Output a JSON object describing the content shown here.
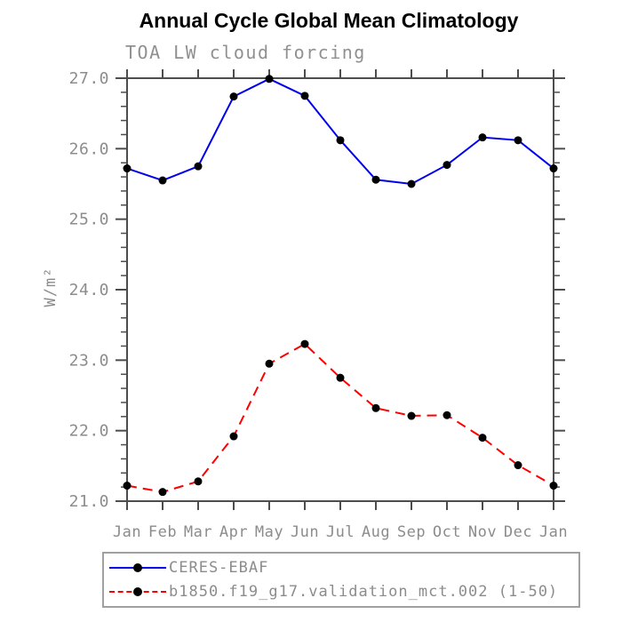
{
  "header": {
    "title": "Annual Cycle Global Mean Climatology",
    "subtitle": "TOA LW cloud forcing"
  },
  "colors": {
    "axis": "#4d4d4d",
    "tick_label": "#8c8c8c",
    "subtitle_text": "#909090",
    "title_text": "#000000",
    "marker": "#000000",
    "series_obs": "#0000ee",
    "series_model": "#ff0000",
    "legend_border": "#a0a0a0",
    "background": "#ffffff"
  },
  "chart_data": {
    "type": "line",
    "title": "Annual Cycle Global Mean Climatology",
    "subtitle": "TOA LW cloud forcing",
    "xlabel": "",
    "ylabel": "W/m²",
    "categories": [
      "Jan",
      "Feb",
      "Mar",
      "Apr",
      "May",
      "Jun",
      "Jul",
      "Aug",
      "Sep",
      "Oct",
      "Nov",
      "Dec",
      "Jan"
    ],
    "y_tick_labels": [
      "21.0",
      "22.0",
      "23.0",
      "24.0",
      "25.0",
      "26.0",
      "27.0"
    ],
    "ylim": [
      21.0,
      27.0
    ],
    "y_major_step": 1.0,
    "y_minor_step": 0.2,
    "grid": false,
    "legend_position": "bottom-left",
    "series": [
      {
        "name": "CERES-EBAF",
        "color": "#0000ee",
        "line_style": "solid",
        "marker": "circle",
        "marker_color": "#000000",
        "values": [
          25.72,
          25.55,
          25.75,
          26.74,
          26.99,
          26.75,
          26.12,
          25.56,
          25.5,
          25.77,
          26.16,
          26.12,
          25.72
        ]
      },
      {
        "name": "b1850.f19_g17.validation_mct.002 (1-50)",
        "color": "#ff0000",
        "line_style": "dashed",
        "marker": "circle",
        "marker_color": "#000000",
        "values": [
          21.22,
          21.13,
          21.28,
          21.92,
          22.95,
          23.23,
          22.75,
          22.32,
          22.21,
          22.22,
          21.9,
          21.51,
          21.22
        ]
      }
    ]
  }
}
